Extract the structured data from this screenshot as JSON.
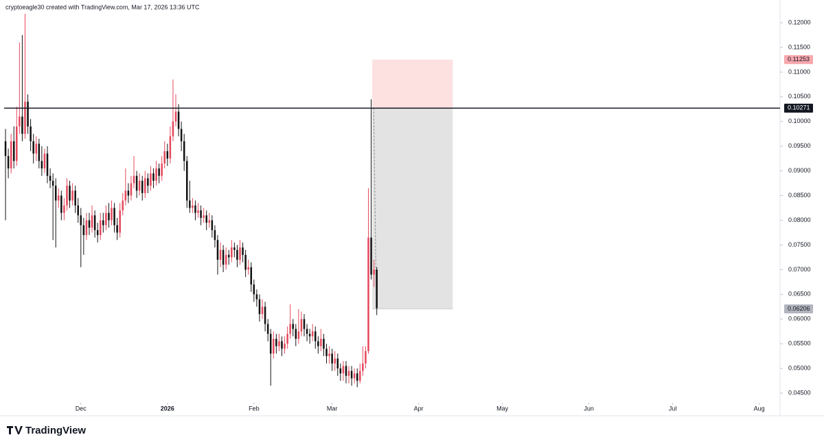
{
  "chart_data": {
    "type": "candlestick",
    "title": "cryptoeagle30 created with TradingView.com, Mar 17, 2026 13:36 UTC",
    "brand": "TradingView",
    "up_color": "#e5485c",
    "down_color": "#111111",
    "open": [
      0.096,
      0.093,
      0.0905,
      0.096,
      0.092,
      0.099,
      0.101,
      0.0975,
      0.104,
      0.099,
      0.096,
      0.0935,
      0.0955,
      0.092,
      0.0905,
      0.0935,
      0.089,
      0.088,
      0.087,
      0.084,
      0.085,
      0.0815,
      0.083,
      0.087,
      0.084,
      0.086,
      0.083,
      0.081,
      0.079,
      0.077,
      0.08,
      0.0785,
      0.081,
      0.078,
      0.077,
      0.08,
      0.079,
      0.0815,
      0.08,
      0.0825,
      0.079,
      0.0775,
      0.082,
      0.084,
      0.086,
      0.085,
      0.0875,
      0.089,
      0.086,
      0.088,
      0.0855,
      0.0885,
      0.087,
      0.0895,
      0.088,
      0.0905,
      0.089,
      0.0915,
      0.094,
      0.0925,
      0.097,
      0.1,
      0.102,
      0.0985,
      0.096,
      0.092,
      0.084,
      0.0825,
      0.083,
      0.0815,
      0.082,
      0.0805,
      0.081,
      0.0795,
      0.08,
      0.078,
      0.076,
      0.072,
      0.074,
      0.071,
      0.073,
      0.0725,
      0.0745,
      0.074,
      0.072,
      0.0745,
      0.073,
      0.07,
      0.0705,
      0.067,
      0.065,
      0.064,
      0.061,
      0.0625,
      0.059,
      0.057,
      0.053,
      0.056,
      0.0545,
      0.0555,
      0.054,
      0.055,
      0.057,
      0.059,
      0.058,
      0.056,
      0.0575,
      0.06,
      0.058,
      0.057,
      0.0565,
      0.0575,
      0.0555,
      0.0545,
      0.056,
      0.054,
      0.0525,
      0.053,
      0.051,
      0.052,
      0.05,
      0.049,
      0.0505,
      0.0485,
      0.0495,
      0.048,
      0.049,
      0.0475,
      0.0495,
      0.051,
      0.0535,
      0.0765,
      0.069,
      0.07
    ],
    "high": [
      0.0985,
      0.0945,
      0.0975,
      0.099,
      0.103,
      0.116,
      0.1175,
      0.1218,
      0.1055,
      0.1005,
      0.0975,
      0.097,
      0.0965,
      0.095,
      0.0945,
      0.095,
      0.0905,
      0.0895,
      0.0885,
      0.0865,
      0.086,
      0.0845,
      0.0885,
      0.088,
      0.0875,
      0.087,
      0.0845,
      0.0825,
      0.0805,
      0.0815,
      0.0815,
      0.083,
      0.082,
      0.0795,
      0.0815,
      0.0815,
      0.083,
      0.0835,
      0.084,
      0.0835,
      0.0805,
      0.0835,
      0.0855,
      0.0905,
      0.0875,
      0.089,
      0.093,
      0.09,
      0.0895,
      0.089,
      0.09,
      0.0895,
      0.091,
      0.0905,
      0.092,
      0.0915,
      0.093,
      0.096,
      0.0955,
      0.099,
      0.1085,
      0.1055,
      0.1035,
      0.1,
      0.0975,
      0.093,
      0.088,
      0.0845,
      0.084,
      0.0835,
      0.083,
      0.0825,
      0.082,
      0.0815,
      0.081,
      0.079,
      0.077,
      0.0755,
      0.075,
      0.0745,
      0.074,
      0.076,
      0.0755,
      0.075,
      0.076,
      0.0755,
      0.074,
      0.072,
      0.0715,
      0.068,
      0.066,
      0.065,
      0.064,
      0.0635,
      0.06,
      0.058,
      0.0575,
      0.057,
      0.057,
      0.0565,
      0.0565,
      0.0585,
      0.063,
      0.06,
      0.059,
      0.062,
      0.0615,
      0.061,
      0.059,
      0.058,
      0.059,
      0.0585,
      0.0565,
      0.058,
      0.057,
      0.055,
      0.0545,
      0.054,
      0.0535,
      0.053,
      0.051,
      0.0515,
      0.0515,
      0.0505,
      0.0505,
      0.05,
      0.05,
      0.051,
      0.0545,
      0.0545,
      0.0865,
      0.1045,
      0.072,
      0.0705
    ],
    "low": [
      0.08,
      0.0885,
      0.0895,
      0.0905,
      0.091,
      0.0975,
      0.096,
      0.0965,
      0.0975,
      0.094,
      0.0915,
      0.092,
      0.0905,
      0.089,
      0.0895,
      0.0875,
      0.0865,
      0.076,
      0.0745,
      0.0825,
      0.08,
      0.08,
      0.082,
      0.0825,
      0.083,
      0.0815,
      0.0795,
      0.0705,
      0.073,
      0.076,
      0.077,
      0.0775,
      0.0765,
      0.0755,
      0.076,
      0.0775,
      0.078,
      0.0785,
      0.079,
      0.0775,
      0.076,
      0.0765,
      0.081,
      0.083,
      0.0835,
      0.084,
      0.0865,
      0.0845,
      0.085,
      0.084,
      0.0845,
      0.0855,
      0.086,
      0.0865,
      0.087,
      0.0875,
      0.088,
      0.0905,
      0.091,
      0.0915,
      0.096,
      0.099,
      0.097,
      0.094,
      0.09,
      0.0825,
      0.0815,
      0.0815,
      0.08,
      0.0805,
      0.079,
      0.0795,
      0.078,
      0.0785,
      0.0765,
      0.0745,
      0.069,
      0.0705,
      0.0695,
      0.07,
      0.071,
      0.0715,
      0.0725,
      0.0705,
      0.071,
      0.0715,
      0.0685,
      0.069,
      0.0655,
      0.0635,
      0.0625,
      0.0595,
      0.06,
      0.0575,
      0.0555,
      0.0465,
      0.052,
      0.053,
      0.0535,
      0.0525,
      0.053,
      0.054,
      0.056,
      0.0565,
      0.0545,
      0.055,
      0.0565,
      0.0565,
      0.0555,
      0.055,
      0.0555,
      0.054,
      0.053,
      0.0535,
      0.0525,
      0.051,
      0.051,
      0.0495,
      0.0495,
      0.0485,
      0.0475,
      0.0475,
      0.047,
      0.047,
      0.0465,
      0.047,
      0.0462,
      0.047,
      0.0485,
      0.05,
      0.053,
      0.068,
      0.0665,
      0.0608
    ],
    "close": [
      0.093,
      0.0905,
      0.096,
      0.092,
      0.099,
      0.101,
      0.0975,
      0.104,
      0.099,
      0.096,
      0.0935,
      0.0955,
      0.092,
      0.0905,
      0.0935,
      0.089,
      0.088,
      0.087,
      0.084,
      0.085,
      0.0815,
      0.083,
      0.087,
      0.084,
      0.086,
      0.083,
      0.081,
      0.079,
      0.077,
      0.08,
      0.0785,
      0.081,
      0.078,
      0.077,
      0.08,
      0.079,
      0.0815,
      0.08,
      0.0825,
      0.079,
      0.0775,
      0.082,
      0.084,
      0.086,
      0.085,
      0.0875,
      0.089,
      0.086,
      0.088,
      0.0855,
      0.0885,
      0.087,
      0.0895,
      0.088,
      0.0905,
      0.089,
      0.0915,
      0.094,
      0.0925,
      0.097,
      0.1,
      0.102,
      0.0985,
      0.096,
      0.092,
      0.084,
      0.0825,
      0.083,
      0.0815,
      0.082,
      0.0805,
      0.081,
      0.0795,
      0.08,
      0.078,
      0.076,
      0.072,
      0.074,
      0.071,
      0.073,
      0.0725,
      0.0745,
      0.074,
      0.072,
      0.0745,
      0.073,
      0.07,
      0.0705,
      0.067,
      0.065,
      0.064,
      0.061,
      0.0625,
      0.059,
      0.057,
      0.053,
      0.056,
      0.0545,
      0.0555,
      0.054,
      0.055,
      0.057,
      0.059,
      0.058,
      0.056,
      0.0575,
      0.06,
      0.058,
      0.057,
      0.0565,
      0.0575,
      0.0555,
      0.0545,
      0.056,
      0.054,
      0.0525,
      0.053,
      0.051,
      0.052,
      0.05,
      0.049,
      0.0505,
      0.0485,
      0.0495,
      0.048,
      0.049,
      0.0475,
      0.0495,
      0.051,
      0.0535,
      0.0765,
      0.069,
      0.07,
      0.0622
    ],
    "xlim": [
      -0.5,
      276
    ],
    "xticks": [
      {
        "value": 27,
        "label": "Dec"
      },
      {
        "value": 58,
        "label": "2026"
      },
      {
        "value": 89,
        "label": "Feb"
      },
      {
        "value": 117,
        "label": "Mar"
      },
      {
        "value": 148,
        "label": "Apr"
      },
      {
        "value": 178,
        "label": "May"
      },
      {
        "value": 209,
        "label": "Jun"
      },
      {
        "value": 239,
        "label": "Jul"
      },
      {
        "value": 270,
        "label": "Aug"
      }
    ],
    "ylim": [
      0.0432,
      0.1246
    ],
    "yticks": [
      {
        "value": 0.045,
        "label": "0.04500"
      },
      {
        "value": 0.05,
        "label": "0.05000"
      },
      {
        "value": 0.055,
        "label": "0.05500"
      },
      {
        "value": 0.06,
        "label": "0.06000"
      },
      {
        "value": 0.065,
        "label": "0.06500"
      },
      {
        "value": 0.07,
        "label": "0.07000"
      },
      {
        "value": 0.075,
        "label": "0.07500"
      },
      {
        "value": 0.08,
        "label": "0.08000"
      },
      {
        "value": 0.085,
        "label": "0.08500"
      },
      {
        "value": 0.09,
        "label": "0.09000"
      },
      {
        "value": 0.095,
        "label": "0.09500"
      },
      {
        "value": 0.1,
        "label": "0.10000"
      },
      {
        "value": 0.105,
        "label": "0.10500"
      },
      {
        "value": 0.11,
        "label": "0.11000"
      },
      {
        "value": 0.115,
        "label": "0.11500"
      },
      {
        "value": 0.12,
        "label": "0.12000"
      }
    ],
    "position": {
      "stop": 0.11253,
      "entry": 0.10271,
      "target": 0.06206,
      "start": 131.4,
      "end": 160.2,
      "stop_color": "#fde0e0",
      "target_color": "#e3e3e3"
    },
    "horizontal_line": 0.10271
  }
}
